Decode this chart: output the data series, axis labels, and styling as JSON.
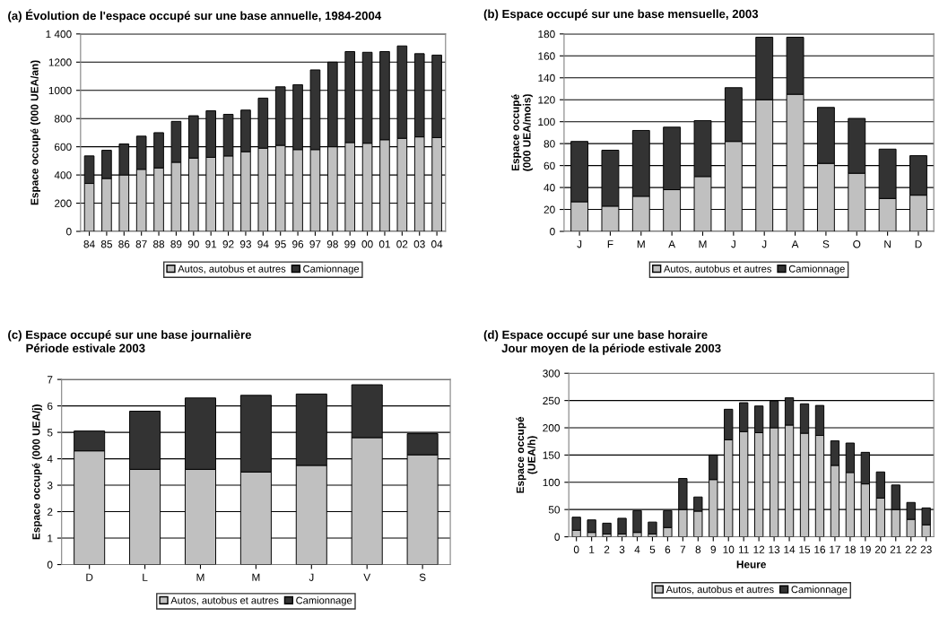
{
  "chart_data": [
    {
      "type": "bar",
      "title": "(a) Évolution de l'espace occupé sur une base annuelle, 1984-2004",
      "ylabel": "Espace occupé (000 UEA/an)",
      "stacked": true,
      "grid": "y",
      "legend": "bottom",
      "categories": [
        "84",
        "85",
        "86",
        "87",
        "88",
        "89",
        "90",
        "91",
        "92",
        "93",
        "94",
        "95",
        "96",
        "97",
        "98",
        "99",
        "00",
        "01",
        "02",
        "03",
        "04"
      ],
      "ylim": [
        0,
        1400
      ],
      "yticks": [
        0,
        200,
        400,
        600,
        800,
        1000,
        1200,
        {
          "value": 1400,
          "label": "1 400"
        }
      ],
      "series": [
        {
          "name": "Autos, autobus et autres",
          "color": "#c0c0c0",
          "values": [
            340,
            375,
            400,
            440,
            450,
            490,
            520,
            525,
            535,
            565,
            590,
            610,
            580,
            580,
            600,
            630,
            625,
            650,
            660,
            670,
            665
          ]
        },
        {
          "name": "Camionnage",
          "color": "#333333",
          "values": [
            195,
            200,
            220,
            235,
            250,
            290,
            300,
            330,
            295,
            295,
            355,
            415,
            460,
            565,
            600,
            645,
            645,
            625,
            655,
            590,
            585
          ]
        }
      ]
    },
    {
      "type": "bar",
      "title": "(b) Espace occupé sur une base mensuelle, 2003",
      "ylabel": "Espace occupé\n(000 UEA/mois)",
      "stacked": true,
      "grid": "y",
      "legend": "bottom",
      "categories": [
        "J",
        "F",
        "M",
        "A",
        "M",
        "J",
        "J",
        "A",
        "S",
        "O",
        "N",
        "D"
      ],
      "ylim": [
        0,
        180
      ],
      "yticks": [
        0,
        20,
        40,
        60,
        80,
        100,
        120,
        140,
        160,
        180
      ],
      "series": [
        {
          "name": "Autos, autobus et autres",
          "color": "#c0c0c0",
          "values": [
            27,
            23,
            32,
            38,
            50,
            82,
            120,
            125,
            62,
            53,
            30,
            33
          ]
        },
        {
          "name": "Camionnage",
          "color": "#333333",
          "values": [
            55,
            51,
            60,
            57,
            51,
            49,
            57,
            52,
            51,
            50,
            45,
            36
          ]
        }
      ]
    },
    {
      "type": "bar",
      "title": "(c) Espace occupé sur une base journalière",
      "subtitle": "Période estivale 2003",
      "ylabel": "Espace occupé (000 UEA/j)",
      "stacked": true,
      "grid": "y",
      "legend": "bottom",
      "categories": [
        "D",
        "L",
        "M",
        "M",
        "J",
        "V",
        "S"
      ],
      "ylim": [
        0,
        7
      ],
      "yticks": [
        0,
        1,
        2,
        3,
        4,
        5,
        6,
        7
      ],
      "series": [
        {
          "name": "Autos, autobus et autres",
          "color": "#c0c0c0",
          "values": [
            4.3,
            3.6,
            3.6,
            3.5,
            3.75,
            4.8,
            4.15
          ]
        },
        {
          "name": "Camionnage",
          "color": "#333333",
          "values": [
            0.75,
            2.2,
            2.7,
            2.9,
            2.7,
            2.0,
            0.8
          ]
        }
      ]
    },
    {
      "type": "bar",
      "title": "(d) Espace occupé sur une base horaire",
      "subtitle": "Jour moyen de la période estivale 2003",
      "ylabel": "Espace occupé\n(UEA/h)",
      "xlabel": "Heure",
      "stacked": true,
      "grid": "y",
      "legend": "bottom",
      "categories": [
        "0",
        "1",
        "2",
        "3",
        "4",
        "5",
        "6",
        "7",
        "8",
        "9",
        "10",
        "11",
        "12",
        "13",
        "14",
        "15",
        "16",
        "17",
        "18",
        "19",
        "20",
        "21",
        "22",
        "23"
      ],
      "ylim": [
        0,
        300
      ],
      "yticks": [
        0,
        50,
        100,
        150,
        200,
        250,
        300
      ],
      "series": [
        {
          "name": "Autos, autobus et autres",
          "color": "#c0c0c0",
          "values": [
            12,
            8,
            5,
            5,
            8,
            5,
            17,
            50,
            47,
            105,
            178,
            193,
            191,
            200,
            205,
            190,
            186,
            131,
            118,
            97,
            71,
            50,
            32,
            22
          ]
        },
        {
          "name": "Camionnage",
          "color": "#333333",
          "values": [
            24,
            23,
            20,
            29,
            40,
            22,
            31,
            57,
            26,
            45,
            56,
            53,
            49,
            49,
            50,
            54,
            55,
            45,
            54,
            58,
            48,
            45,
            31,
            31
          ]
        }
      ]
    }
  ]
}
